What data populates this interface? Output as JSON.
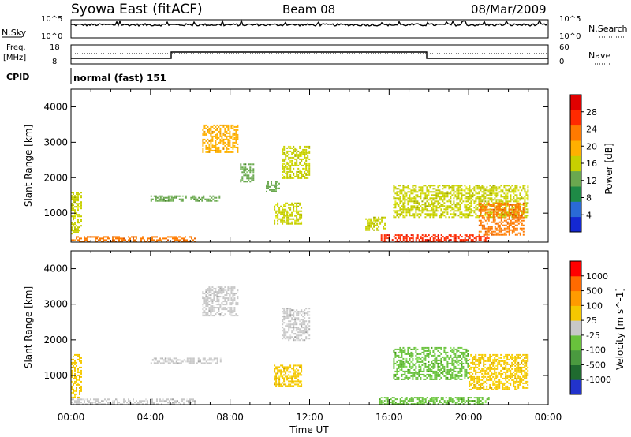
{
  "header": {
    "station": "Syowa East (fitACF)",
    "beam": "Beam 08",
    "date": "08/Mar/2009"
  },
  "strips": {
    "nsky_label": "N.Sky",
    "nsky_ticks": [
      "10^5",
      "10^0"
    ],
    "nsearch_label": "N.Search",
    "nsearch_ticks": [
      "10^5",
      "10^0"
    ],
    "freq_label_1": "Freq.",
    "freq_label_2": "[MHz]",
    "freq_ticks": [
      "18",
      "8"
    ],
    "nave_label": "Nave",
    "nave_ticks": [
      "60",
      "0"
    ],
    "cpid_label": "CPID",
    "cpid_value": "normal (fast) 151"
  },
  "colors": {
    "power_scale": [
      "#1428d2",
      "#2a6ad6",
      "#1e8a46",
      "#6aa84f",
      "#c7d000",
      "#ffb000",
      "#ff7a00",
      "#ff2a00",
      "#e00000"
    ],
    "velocity_scale": [
      "#2233cc",
      "#1f6b2f",
      "#4a9a3f",
      "#69c23c",
      "#c8c8c8",
      "#f5c800",
      "#ff9b00",
      "#ff6a00",
      "#ff0000"
    ]
  },
  "chart_data": [
    {
      "type": "heatmap",
      "title": "",
      "xlabel": "Time UT",
      "ylabel": "Slant Range [km]",
      "xlim": [
        "00:00",
        "24:00"
      ],
      "ylim": [
        180,
        4500
      ],
      "x_tick_labels": [
        "00:00",
        "04:00",
        "08:00",
        "12:00",
        "16:00",
        "20:00",
        "00:00"
      ],
      "y_tick_labels": [
        "1000",
        "2000",
        "3000",
        "4000"
      ],
      "colorbar": {
        "label": "Power [dB]",
        "tick_labels": [
          "28",
          "24",
          "20",
          "16",
          "12",
          "8",
          "4"
        ],
        "range": [
          0,
          30
        ]
      },
      "echo_regions": [
        {
          "t0": 0.0,
          "t1": 6.2,
          "r0": 200,
          "r1": 350,
          "value": 22
        },
        {
          "t0": 0.0,
          "t1": 0.5,
          "r0": 400,
          "r1": 1600,
          "value": 14
        },
        {
          "t0": 4.0,
          "t1": 5.8,
          "r0": 1350,
          "r1": 1500,
          "value": 10
        },
        {
          "t0": 6.0,
          "t1": 7.5,
          "r0": 1350,
          "r1": 1500,
          "value": 12
        },
        {
          "t0": 6.6,
          "t1": 8.4,
          "r0": 2700,
          "r1": 3500,
          "value": 18
        },
        {
          "t0": 8.5,
          "t1": 9.2,
          "r0": 1900,
          "r1": 2400,
          "value": 10
        },
        {
          "t0": 9.8,
          "t1": 10.5,
          "r0": 1600,
          "r1": 1900,
          "value": 12
        },
        {
          "t0": 10.2,
          "t1": 11.6,
          "r0": 700,
          "r1": 1300,
          "value": 16
        },
        {
          "t0": 10.6,
          "t1": 12.0,
          "r0": 2000,
          "r1": 2900,
          "value": 14
        },
        {
          "t0": 14.8,
          "t1": 15.8,
          "r0": 500,
          "r1": 900,
          "value": 14
        },
        {
          "t0": 15.5,
          "t1": 21.0,
          "r0": 200,
          "r1": 400,
          "value": 26
        },
        {
          "t0": 16.2,
          "t1": 23.0,
          "r0": 900,
          "r1": 1800,
          "value": 16
        },
        {
          "t0": 20.5,
          "t1": 22.8,
          "r0": 400,
          "r1": 1300,
          "value": 22
        }
      ]
    },
    {
      "type": "heatmap",
      "title": "",
      "xlabel": "Time UT",
      "ylabel": "Slant Range [km]",
      "xlim": [
        "00:00",
        "24:00"
      ],
      "ylim": [
        180,
        4500
      ],
      "x_tick_labels": [
        "00:00",
        "04:00",
        "08:00",
        "12:00",
        "16:00",
        "20:00",
        "00:00"
      ],
      "y_tick_labels": [
        "1000",
        "2000",
        "3000",
        "4000"
      ],
      "colorbar": {
        "label": "Velocity [m s^-1]",
        "tick_labels": [
          "1000",
          "500",
          "100",
          "25",
          "-25",
          "-100",
          "-500",
          "-1000"
        ],
        "range": [
          -1200,
          1200
        ]
      },
      "echo_regions": [
        {
          "t0": 0.0,
          "t1": 6.2,
          "r0": 200,
          "r1": 350,
          "value": -80
        },
        {
          "t0": 0.0,
          "t1": 0.5,
          "r0": 400,
          "r1": 1600,
          "value": 200
        },
        {
          "t0": 4.0,
          "t1": 7.5,
          "r0": 1350,
          "r1": 1500,
          "value": 0
        },
        {
          "t0": 6.6,
          "t1": 8.4,
          "r0": 2700,
          "r1": 3500,
          "value": 0
        },
        {
          "t0": 10.2,
          "t1": 11.6,
          "r0": 700,
          "r1": 1300,
          "value": 150
        },
        {
          "t0": 10.6,
          "t1": 12.0,
          "r0": 2000,
          "r1": 2900,
          "value": 0
        },
        {
          "t0": 15.5,
          "t1": 21.0,
          "r0": 200,
          "r1": 400,
          "value": -200
        },
        {
          "t0": 16.2,
          "t1": 20.0,
          "r0": 900,
          "r1": 1800,
          "value": -300
        },
        {
          "t0": 20.0,
          "t1": 23.0,
          "r0": 600,
          "r1": 1600,
          "value": 300
        }
      ]
    }
  ]
}
